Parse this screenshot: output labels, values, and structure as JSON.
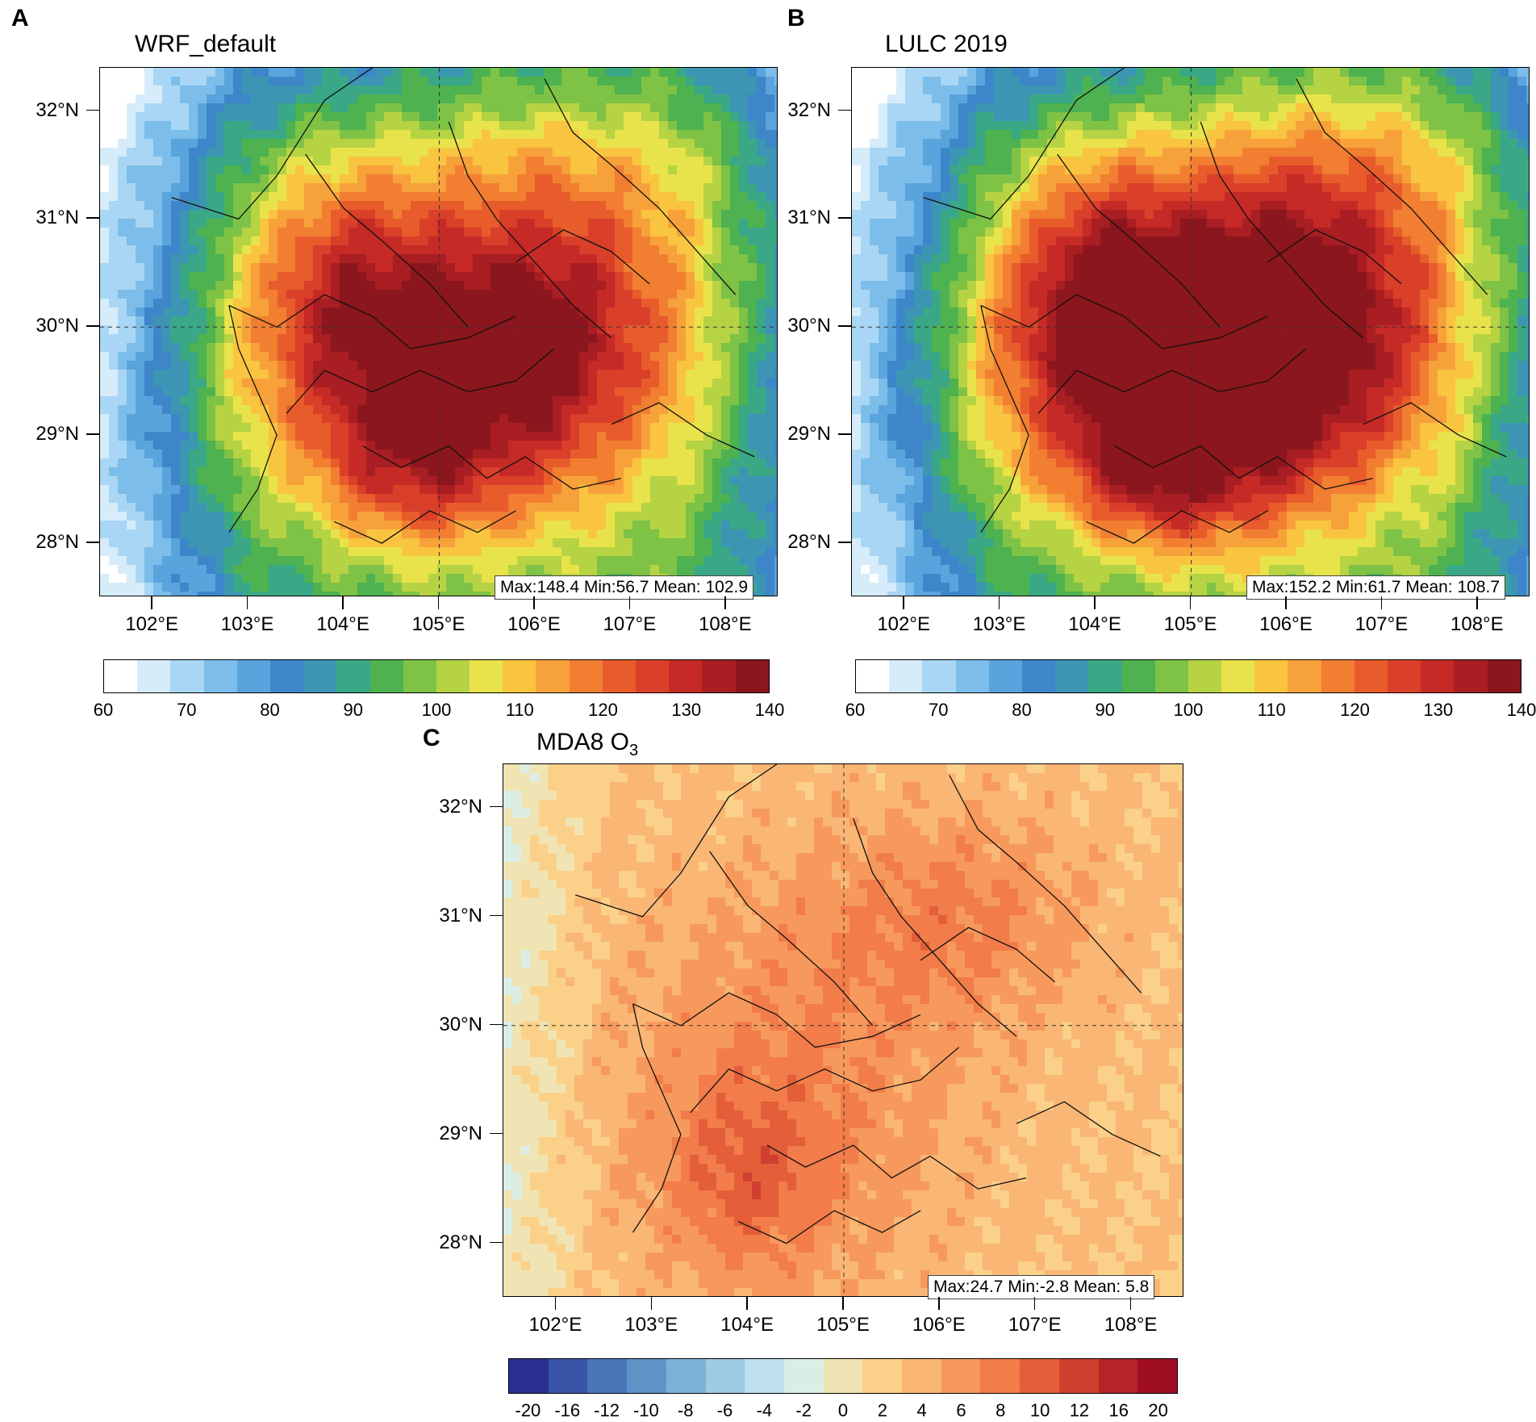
{
  "panels": [
    {
      "letter": "A",
      "title": "WRF_default",
      "stats": "Max:148.4  Min:56.7  Mean: 102.9",
      "colorbar_labels": [
        "60",
        "70",
        "80",
        "90",
        "100",
        "110",
        "120",
        "130",
        "140"
      ]
    },
    {
      "letter": "B",
      "title": "LULC 2019",
      "stats": "Max:152.2  Min:61.7  Mean: 108.7",
      "colorbar_labels": [
        "60",
        "70",
        "80",
        "90",
        "100",
        "110",
        "120",
        "130",
        "140"
      ]
    },
    {
      "letter": "C",
      "title_main": "MDA8 O",
      "title_sub": "3",
      "stats": "Max:24.7  Min:-2.8  Mean:  5.8",
      "colorbar_labels": [
        "-20",
        "-16",
        "-12",
        "-10",
        "-8",
        "-6",
        "-4",
        "-2",
        "0",
        "2",
        "4",
        "6",
        "8",
        "10",
        "12",
        "16",
        "20"
      ]
    }
  ],
  "lat_labels": [
    "32°N",
    "31°N",
    "30°N",
    "29°N",
    "28°N"
  ],
  "lon_labels": [
    "102°E",
    "103°E",
    "104°E",
    "105°E",
    "106°E",
    "107°E",
    "108°E"
  ],
  "colors": {
    "abs_scale": [
      "#ffffff",
      "#d6ecfa",
      "#a9d6f4",
      "#7cbde9",
      "#5aa4dd",
      "#3d86c9",
      "#3c95b3",
      "#3aa886",
      "#4db24f",
      "#7ec246",
      "#b6d343",
      "#e8e34a",
      "#f9c440",
      "#f7a13a",
      "#f27e32",
      "#e85c2c",
      "#d93f29",
      "#c52a26",
      "#a81e22",
      "#8c161d"
    ],
    "diff_scale": [
      "#2b2f8f",
      "#3a55a8",
      "#4a74b8",
      "#5f93c8",
      "#7eb1d8",
      "#9fcae4",
      "#bde0ec",
      "#dbeee6",
      "#f0e4b4",
      "#fbd088",
      "#f9b674",
      "#f7995c",
      "#f27c4a",
      "#e45e3a",
      "#d04030",
      "#b42428",
      "#a00e24"
    ]
  }
}
